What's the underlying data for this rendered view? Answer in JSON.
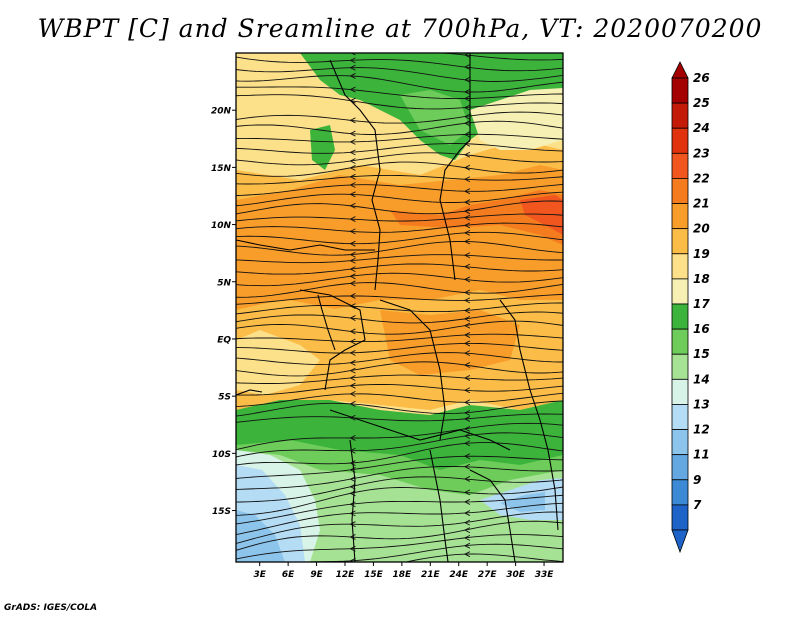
{
  "title": "WBPT [C] and Sreamline at 700hPa, VT: 2020070200",
  "footer": "GrADS: IGES/COLA",
  "map": {
    "lat_labels": [
      "20N",
      "15N",
      "10N",
      "5N",
      "EQ",
      "5S",
      "10S",
      "15S"
    ],
    "lat_values": [
      20,
      15,
      10,
      5,
      0,
      -5,
      -10,
      -15
    ],
    "lon_labels": [
      "3E",
      "6E",
      "9E",
      "12E",
      "15E",
      "18E",
      "21E",
      "24E",
      "27E",
      "30E",
      "33E"
    ],
    "lon_values": [
      3,
      6,
      9,
      12,
      15,
      18,
      21,
      24,
      27,
      30,
      33
    ],
    "extent": {
      "lon_min": 0.5,
      "lon_max": 35,
      "lat_min": -19.5,
      "lat_max": 25
    }
  },
  "colorbar": {
    "labels": [
      "26",
      "25",
      "24",
      "23",
      "22",
      "21",
      "20",
      "19",
      "18",
      "17",
      "16",
      "15",
      "14",
      "13",
      "12",
      "11",
      "9",
      "7"
    ],
    "colors": [
      "#a50000",
      "#c41a08",
      "#e0320c",
      "#f0561e",
      "#f57c1e",
      "#f89c2a",
      "#fbbd48",
      "#fde08a",
      "#f6f0b4",
      "#3cb43c",
      "#6ecd5a",
      "#a6e294",
      "#d8f4e8",
      "#b4dcf4",
      "#8cc4ec",
      "#64a8e2",
      "#3c8ad6",
      "#1e64c8"
    ]
  }
}
